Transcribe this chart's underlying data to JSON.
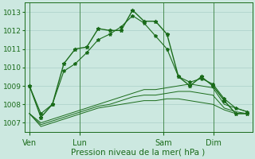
{
  "title": "Pression niveau de la mer( hPa )",
  "bg_color": "#cce8e0",
  "grid_color": "#aacfc8",
  "line_color": "#1a6b1a",
  "ylim": [
    1006.5,
    1013.5
  ],
  "yticks": [
    1007,
    1008,
    1009,
    1010,
    1011,
    1012,
    1013
  ],
  "xtick_labels": [
    "Ven",
    "Lun",
    "Sam",
    "Dim"
  ],
  "xtick_pos": [
    0,
    3,
    8,
    11
  ],
  "xlim": [
    -0.3,
    13.3
  ],
  "series": {
    "main": [
      1009.0,
      1007.3,
      1008.0,
      1010.2,
      1011.0,
      1011.1,
      1012.1,
      1012.0,
      1012.0,
      1013.1,
      1012.5,
      1012.5,
      1011.8,
      1009.5,
      1009.0,
      1009.5,
      1009.0,
      1008.2,
      1007.5,
      1007.5
    ],
    "secondary": [
      1009.0,
      1007.5,
      1008.0,
      1009.8,
      1010.2,
      1010.8,
      1011.5,
      1011.8,
      1012.2,
      1012.8,
      1012.4,
      1011.7,
      1011.0,
      1009.5,
      1009.2,
      1009.4,
      1009.1,
      1008.3,
      1007.8,
      1007.6
    ],
    "flat1": [
      1007.5,
      1007.0,
      1007.2,
      1007.4,
      1007.6,
      1007.8,
      1008.0,
      1008.2,
      1008.4,
      1008.6,
      1008.8,
      1008.8,
      1008.9,
      1009.0,
      1009.1,
      1009.0,
      1008.9,
      1008.0,
      1007.8,
      1007.6
    ],
    "flat2": [
      1007.5,
      1006.9,
      1007.1,
      1007.3,
      1007.5,
      1007.7,
      1007.9,
      1008.0,
      1008.2,
      1008.4,
      1008.5,
      1008.5,
      1008.6,
      1008.7,
      1008.7,
      1008.6,
      1008.5,
      1007.8,
      1007.6,
      1007.5
    ],
    "flat3": [
      1007.5,
      1006.8,
      1007.0,
      1007.2,
      1007.4,
      1007.6,
      1007.8,
      1007.9,
      1008.0,
      1008.1,
      1008.2,
      1008.2,
      1008.3,
      1008.3,
      1008.2,
      1008.1,
      1008.0,
      1007.7,
      1007.5,
      1007.5
    ]
  },
  "n_points": 20
}
